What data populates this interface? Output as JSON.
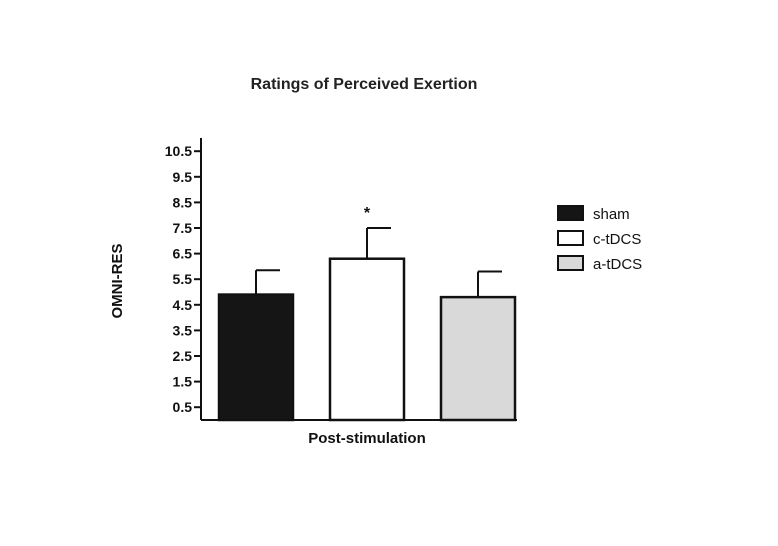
{
  "chart_data": {
    "type": "bar",
    "title": "Ratings of Perceived Exertion",
    "xlabel": "Post-stimulation",
    "ylabel": "OMNI-RES",
    "ylim": [
      0,
      11
    ],
    "yticks": [
      "0.5",
      "1.5",
      "2.5",
      "3.5",
      "4.5",
      "5.5",
      "6.5",
      "7.5",
      "8.5",
      "9.5",
      "10.5"
    ],
    "grid": false,
    "legend_position": "right",
    "categories": [
      "Post-stimulation"
    ],
    "series": [
      {
        "name": "sham",
        "values": [
          4.9
        ],
        "error": [
          0.95
        ],
        "color": "#151515",
        "annotation": ""
      },
      {
        "name": "c-tDCS",
        "values": [
          6.3
        ],
        "error": [
          1.2
        ],
        "color": "#ffffff",
        "annotation": "*"
      },
      {
        "name": "a-tDCS",
        "values": [
          4.8
        ],
        "error": [
          1.0
        ],
        "color": "#d9d9d9",
        "annotation": ""
      }
    ]
  }
}
